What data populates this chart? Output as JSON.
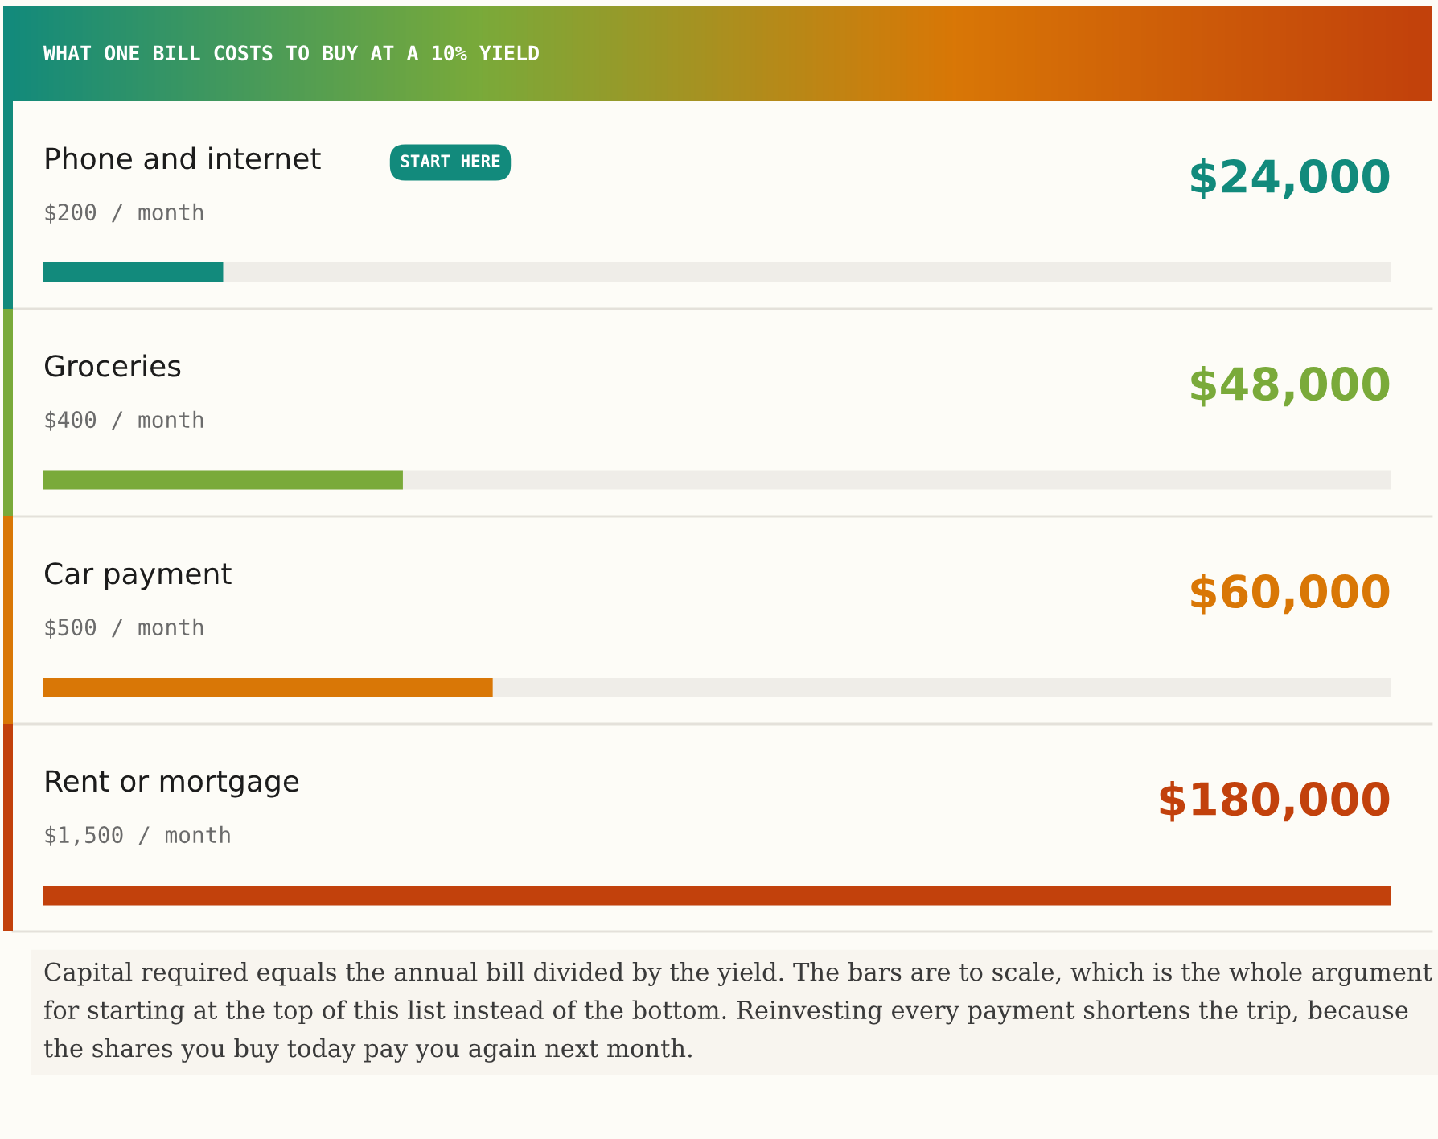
{
  "chart_data": {
    "type": "bar",
    "orientation": "horizontal",
    "title": "WHAT ONE BILL COSTS TO BUY AT A 10% YIELD",
    "categories": [
      "Phone and internet",
      "Groceries",
      "Car payment",
      "Rent or mortgage"
    ],
    "values": [
      24000,
      48000,
      60000,
      180000
    ],
    "value_labels": [
      "$24,000",
      "$48,000",
      "$60,000",
      "$180,000"
    ],
    "colors": [
      "#128a7c",
      "#7aaa3a",
      "#d97706",
      "#c2410c"
    ],
    "xlim": [
      0,
      180000
    ],
    "annotations": [
      "$200 / month",
      "$400 / month",
      "$500 / month",
      "$1,500 / month",
      "START HERE",
      "Capital required equals the annual bill divided by the yield. The bars are to scale, which is the whole argument for starting at the top of this list instead of the bottom. Reinvesting every payment shortens the trip, because the shares you buy today pay you again next month."
    ]
  }
}
